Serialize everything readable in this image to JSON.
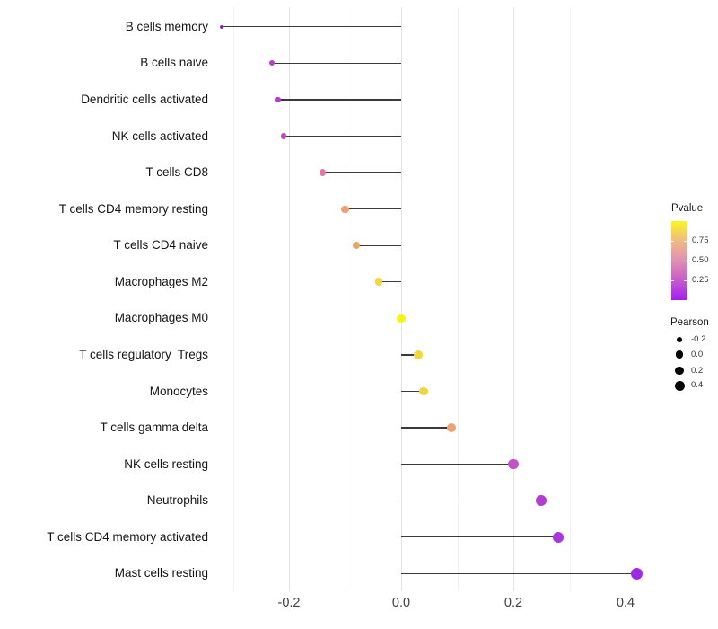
{
  "chart_data": {
    "type": "scatter",
    "subtype": "lollipop",
    "title": "",
    "xlabel": "",
    "ylabel": "",
    "background": "#FFFFFF",
    "grid": "vertical major+minor, light gray, no axis lines",
    "xlim": [
      -0.35,
      0.46
    ],
    "x_ticks": {
      "major_values": [
        -0.2,
        0.0,
        0.2,
        0.4
      ],
      "major_labels": [
        "-0.2",
        "0.0",
        "0.2",
        "0.4"
      ],
      "minor_values": [
        -0.3,
        -0.1,
        0.1,
        0.3
      ]
    },
    "stem_color": "#3A3A3A",
    "points": [
      {
        "label": "B cells memory",
        "pearson": -0.32,
        "pvalue": 0.05,
        "color": "#8921D8"
      },
      {
        "label": "B cells naive",
        "pearson": -0.23,
        "pvalue": 0.25,
        "color": "#B540C8"
      },
      {
        "label": "Dendritic cells activated",
        "pearson": -0.22,
        "pvalue": 0.26,
        "color": "#B43FC9"
      },
      {
        "label": "NK cells activated",
        "pearson": -0.21,
        "pvalue": 0.28,
        "color": "#BB4AC4"
      },
      {
        "label": "T cells CD8",
        "pearson": -0.14,
        "pvalue": 0.45,
        "color": "#DD7BA6"
      },
      {
        "label": "T cells CD4 memory resting",
        "pearson": -0.1,
        "pvalue": 0.62,
        "color": "#EDA076"
      },
      {
        "label": "T cells CD4 naive",
        "pearson": -0.08,
        "pvalue": 0.66,
        "color": "#EBA662"
      },
      {
        "label": "Macrophages M2",
        "pearson": -0.04,
        "pvalue": 0.85,
        "color": "#F4D53C"
      },
      {
        "label": "Macrophages M0",
        "pearson": 0.0,
        "pvalue": 0.97,
        "color": "#FBF118"
      },
      {
        "label": "T cells regulatory  Tregs",
        "pearson": 0.03,
        "pvalue": 0.85,
        "color": "#F3D63E"
      },
      {
        "label": "Monocytes",
        "pearson": 0.04,
        "pvalue": 0.84,
        "color": "#F2D440"
      },
      {
        "label": "T cells gamma delta",
        "pearson": 0.09,
        "pvalue": 0.62,
        "color": "#EDA273"
      },
      {
        "label": "NK cells resting",
        "pearson": 0.2,
        "pvalue": 0.3,
        "color": "#C253C6"
      },
      {
        "label": "Neutrophils",
        "pearson": 0.25,
        "pvalue": 0.22,
        "color": "#B13DD1"
      },
      {
        "label": "T cells CD4 memory activated",
        "pearson": 0.28,
        "pvalue": 0.17,
        "color": "#A937DB"
      },
      {
        "label": "Mast cells resting",
        "pearson": 0.42,
        "pvalue": 0.08,
        "color": "#9B2BE8"
      }
    ],
    "legends": {
      "pvalue": {
        "title": "Pvalue",
        "tick_labels": [
          "0.75",
          "0.50",
          "0.25"
        ],
        "tick_values": [
          0.75,
          0.5,
          0.25
        ],
        "range": [
          0,
          1
        ],
        "gradient_stops_bottom_to_top": [
          "#A21EF3",
          "#C45CC9",
          "#E090B2",
          "#EFBA85",
          "#FBF61F"
        ]
      },
      "pearson": {
        "title": "Pearson",
        "tick_labels": [
          "-0.2",
          "0.0",
          "0.2",
          "0.4"
        ],
        "tick_values": [
          -0.2,
          0.0,
          0.2,
          0.4
        ],
        "dot_color": "#000000"
      }
    }
  }
}
